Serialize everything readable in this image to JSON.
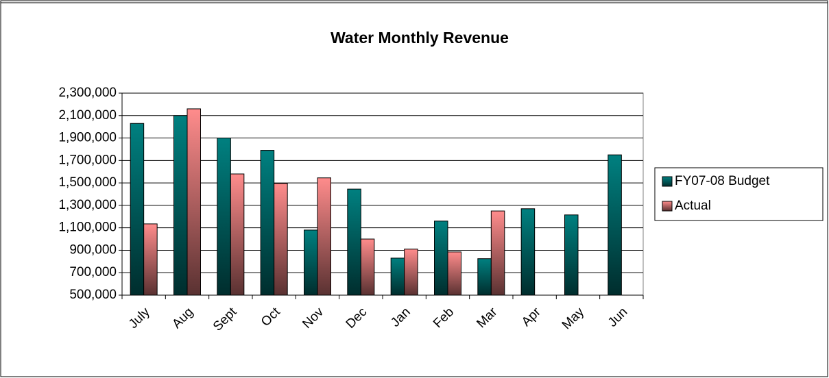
{
  "chart_data": {
    "type": "bar",
    "title": "Water Monthly Revenue",
    "categories": [
      "July",
      "Aug",
      "Sept",
      "Oct",
      "Nov",
      "Dec",
      "Jan",
      "Feb",
      "Mar",
      "Apr",
      "May",
      "Jun"
    ],
    "series": [
      {
        "name": "FY07-08 Budget",
        "color": "#008080",
        "values": [
          2030000,
          2100000,
          1900000,
          1790000,
          1080000,
          1445000,
          830000,
          1160000,
          825000,
          1270000,
          1215000,
          1750000
        ]
      },
      {
        "name": "Actual",
        "color": "#ff8c8c",
        "values": [
          1135000,
          2160000,
          1580000,
          1495000,
          1545000,
          1000000,
          910000,
          885000,
          1250000,
          null,
          null,
          null
        ]
      }
    ],
    "ylim": [
      500000,
      2300000
    ],
    "yticks": [
      {
        "value": 500000,
        "label": "500,000"
      },
      {
        "value": 700000,
        "label": "700,000"
      },
      {
        "value": 900000,
        "label": "900,000"
      },
      {
        "value": 1100000,
        "label": "1,100,000"
      },
      {
        "value": 1300000,
        "label": "1,300,000"
      },
      {
        "value": 1500000,
        "label": "1,500,000"
      },
      {
        "value": 1700000,
        "label": "1,700,000"
      },
      {
        "value": 1900000,
        "label": "1,900,000"
      },
      {
        "value": 2100000,
        "label": "2,100,000"
      },
      {
        "value": 2300000,
        "label": "2,300,000"
      }
    ],
    "grid": true,
    "legend": "right"
  }
}
